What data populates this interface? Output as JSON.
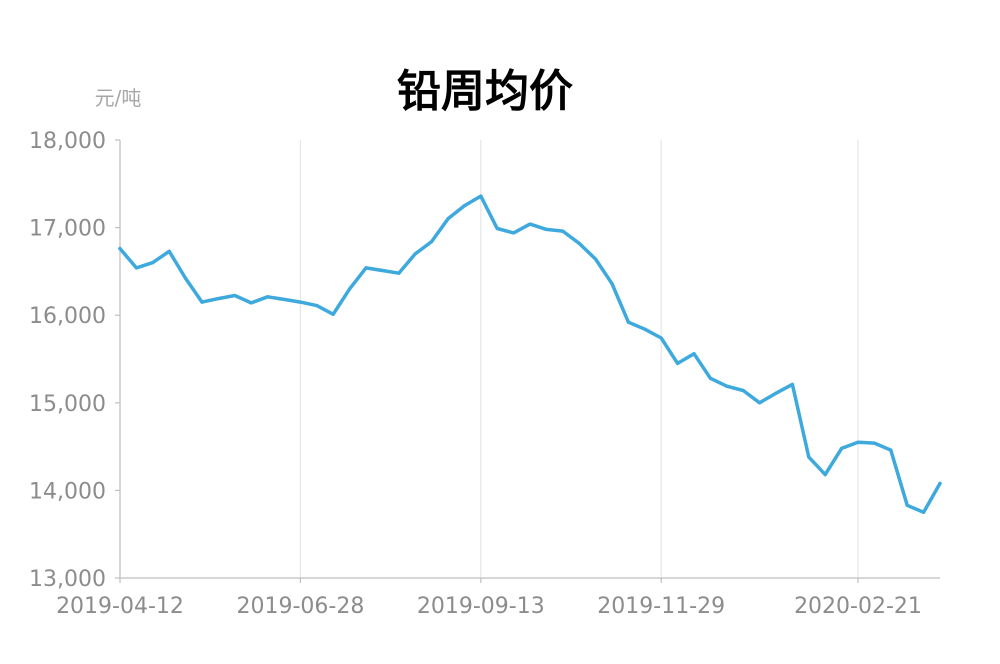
{
  "chart_data": {
    "type": "line",
    "title": "铅周均价",
    "y_unit": "元/吨",
    "xlabel": "",
    "ylabel": "",
    "ylim": [
      13000,
      18000
    ],
    "yticks": [
      "13,000",
      "14,000",
      "15,000",
      "16,000",
      "17,000",
      "18,000"
    ],
    "ytick_values": [
      13000,
      14000,
      15000,
      16000,
      17000,
      18000
    ],
    "xticks": [
      "2019-04-12",
      "2019-06-28",
      "2019-09-13",
      "2019-11-29",
      "2020-02-21"
    ],
    "grid": "vertical-at-labeled-ticks",
    "colors": {
      "line": "#3ea9dd",
      "grid": "#e6e6e6",
      "axis": "#bfbfbf"
    },
    "series": [
      {
        "x": [
          "2019-04-12",
          "2019-04-19",
          "2019-04-26",
          "2019-05-03",
          "2019-05-10",
          "2019-05-17",
          "2019-05-24",
          "2019-05-31",
          "2019-06-07",
          "2019-06-14",
          "2019-06-21",
          "2019-06-28",
          "2019-07-05",
          "2019-07-12",
          "2019-07-19",
          "2019-07-26",
          "2019-08-02",
          "2019-08-09",
          "2019-08-16",
          "2019-08-23",
          "2019-08-30",
          "2019-09-06",
          "2019-09-13",
          "2019-09-20",
          "2019-09-27",
          "2019-10-04",
          "2019-10-11",
          "2019-10-18",
          "2019-10-25",
          "2019-11-01",
          "2019-11-08",
          "2019-11-15",
          "2019-11-22",
          "2019-11-29",
          "2019-12-06",
          "2019-12-13",
          "2019-12-20",
          "2019-12-27",
          "2020-01-03",
          "2020-01-10",
          "2020-01-17",
          "2020-01-24",
          "2020-01-31",
          "2020-02-07",
          "2020-02-14",
          "2020-02-21",
          "2020-02-28",
          "2020-03-06",
          "2020-03-13",
          "2020-03-20",
          "2020-03-27"
        ],
        "values": [
          16760,
          16540,
          16600,
          16730,
          16420,
          16150,
          16190,
          16225,
          16140,
          16210,
          16180,
          16150,
          16110,
          16010,
          16300,
          16540,
          16510,
          16480,
          16700,
          16840,
          17100,
          17250,
          17360,
          16990,
          16940,
          17040,
          16980,
          16960,
          16820,
          16640,
          16360,
          15920,
          15840,
          15740,
          15450,
          15560,
          15280,
          15190,
          15140,
          15000,
          15110,
          15210,
          14380,
          14180,
          14480,
          14550,
          14540,
          14460,
          13830,
          13750,
          14080
        ]
      }
    ]
  }
}
